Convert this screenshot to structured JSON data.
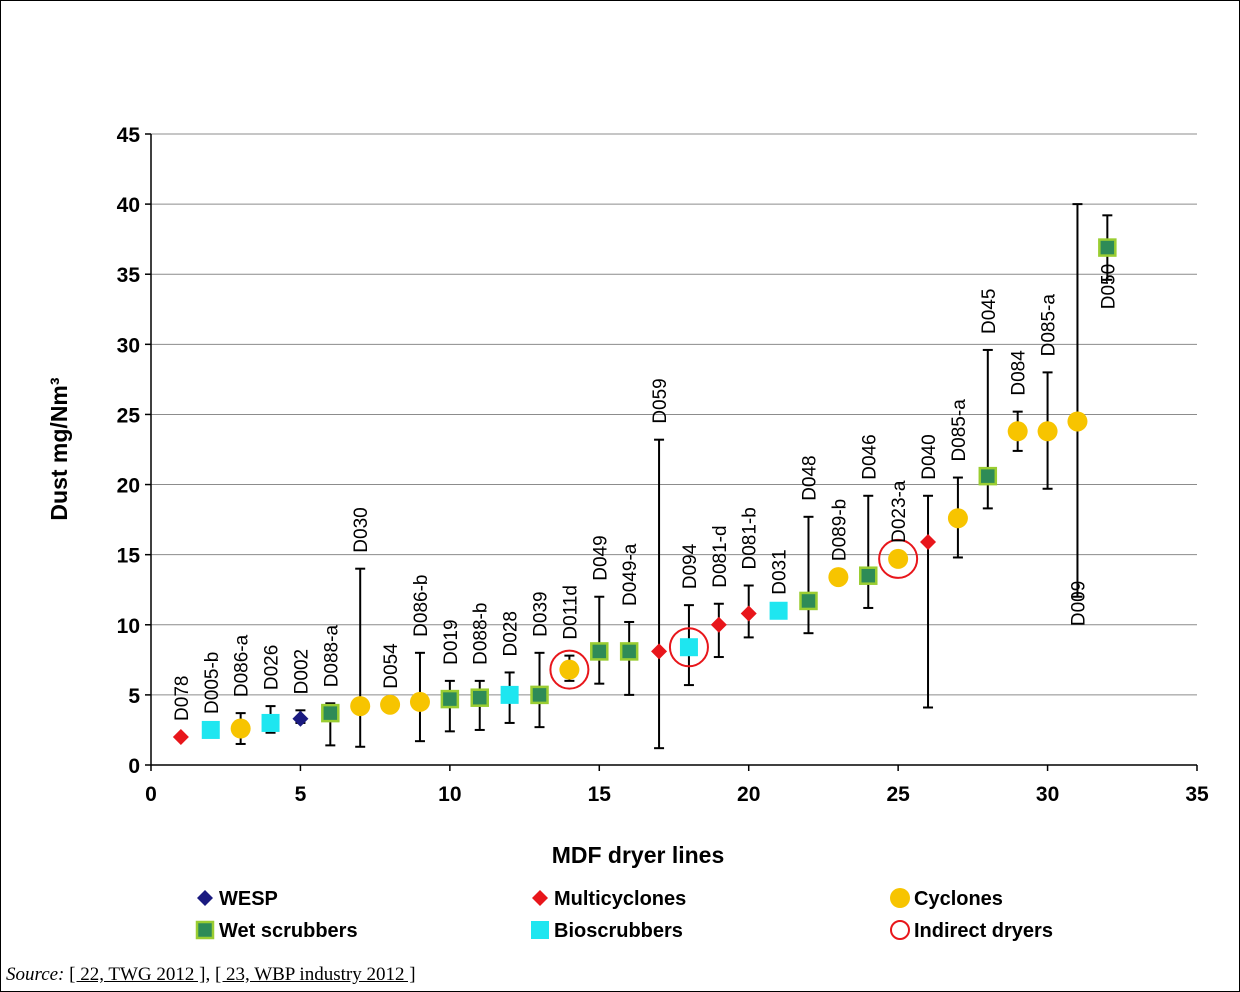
{
  "chart_data": {
    "type": "scatter",
    "xlabel": "MDF dryer lines",
    "ylabel": "Dust mg/Nm³",
    "xlim": [
      0,
      35
    ],
    "ylim": [
      0,
      45
    ],
    "xticks": [
      0,
      5,
      10,
      15,
      20,
      25,
      30,
      35
    ],
    "yticks": [
      0,
      5,
      10,
      15,
      20,
      25,
      30,
      35,
      40,
      45
    ],
    "grid": "horizontal",
    "legend_position": "bottom",
    "legend": [
      {
        "key": "wesp",
        "label": "WESP"
      },
      {
        "key": "multicyclones",
        "label": "Multicyclones"
      },
      {
        "key": "cyclones",
        "label": "Cyclones"
      },
      {
        "key": "wet_scrubbers",
        "label": "Wet scrubbers"
      },
      {
        "key": "bioscrubbers",
        "label": "Bioscrubbers"
      },
      {
        "key": "indirect_dryers",
        "label": "Indirect dryers"
      }
    ],
    "colors": {
      "wesp": "#1a1a80",
      "multicyclones": "#e8161b",
      "cyclones": "#f7c400",
      "wet_scrubbers_fill": "#2e8b57",
      "wet_scrubbers_edge": "#9acd32",
      "bioscrubbers": "#1ee6f0",
      "indirect_dryers": "#e8161b",
      "error_bars": "#000000",
      "grid": "#8c8c8c"
    },
    "points": [
      {
        "x": 1,
        "y": 2.0,
        "type": "multicyclones",
        "label": "D078"
      },
      {
        "x": 2,
        "y": 2.5,
        "type": "bioscrubbers",
        "label": "D005-b"
      },
      {
        "x": 3,
        "y": 2.6,
        "type": "cyclones",
        "label": "D086-a",
        "min": 1.5,
        "max": 3.7
      },
      {
        "x": 4,
        "y": 3.0,
        "type": "bioscrubbers",
        "label": "D026",
        "min": 2.3,
        "max": 4.2
      },
      {
        "x": 5,
        "y": 3.3,
        "type": "wesp",
        "label": "D002",
        "min": 3.0,
        "max": 3.9
      },
      {
        "x": 6,
        "y": 3.7,
        "type": "wet_scrubbers",
        "label": "D088-a",
        "min": 1.4,
        "max": 4.4
      },
      {
        "x": 7,
        "y": 4.2,
        "type": "cyclones",
        "label": "D030",
        "min": 1.3,
        "max": 14.0
      },
      {
        "x": 8,
        "y": 4.3,
        "type": "cyclones",
        "label": "D054"
      },
      {
        "x": 9,
        "y": 4.5,
        "type": "cyclones",
        "label": "D086-b",
        "min": 1.7,
        "max": 8.0
      },
      {
        "x": 10,
        "y": 4.7,
        "type": "wet_scrubbers",
        "label": "D019",
        "min": 2.4,
        "max": 6.0
      },
      {
        "x": 11,
        "y": 4.8,
        "type": "wet_scrubbers",
        "label": "D088-b",
        "min": 2.5,
        "max": 6.0
      },
      {
        "x": 12,
        "y": 5.0,
        "type": "bioscrubbers",
        "label": "D028",
        "min": 3.0,
        "max": 6.6
      },
      {
        "x": 13,
        "y": 5.0,
        "type": "wet_scrubbers",
        "label": "D039",
        "min": 2.7,
        "max": 8.0
      },
      {
        "x": 14,
        "y": 6.8,
        "type": "cyclones",
        "label": "D011d",
        "min": 6.0,
        "max": 7.8,
        "indirect": true
      },
      {
        "x": 15,
        "y": 8.1,
        "type": "wet_scrubbers",
        "label": "D049",
        "min": 5.8,
        "max": 12.0
      },
      {
        "x": 16,
        "y": 8.1,
        "type": "wet_scrubbers",
        "label": "D049-a",
        "min": 5.0,
        "max": 10.2
      },
      {
        "x": 17,
        "y": 8.1,
        "type": "multicyclones",
        "label": "D059",
        "min": 1.2,
        "max": 23.2
      },
      {
        "x": 18,
        "y": 8.4,
        "type": "bioscrubbers",
        "label": "D094",
        "min": 5.7,
        "max": 11.4,
        "indirect": true
      },
      {
        "x": 19,
        "y": 10.0,
        "type": "multicyclones",
        "label": "D081-d",
        "min": 7.7,
        "max": 11.5
      },
      {
        "x": 20,
        "y": 10.8,
        "type": "multicyclones",
        "label": "D081-b",
        "min": 9.1,
        "max": 12.8
      },
      {
        "x": 21,
        "y": 11.0,
        "type": "bioscrubbers",
        "label": "D031"
      },
      {
        "x": 22,
        "y": 11.7,
        "type": "wet_scrubbers",
        "label": "D048",
        "min": 9.4,
        "max": 17.7
      },
      {
        "x": 23,
        "y": 13.4,
        "type": "cyclones",
        "label": "D089-b"
      },
      {
        "x": 24,
        "y": 13.5,
        "type": "wet_scrubbers",
        "label": "D046",
        "min": 11.2,
        "max": 19.2
      },
      {
        "x": 25,
        "y": 14.7,
        "type": "cyclones",
        "label": "D023-a",
        "indirect": true
      },
      {
        "x": 26,
        "y": 15.9,
        "type": "multicyclones",
        "label": "D040",
        "min": 4.1,
        "max": 19.2
      },
      {
        "x": 27,
        "y": 17.6,
        "type": "cyclones",
        "label": "D085-a",
        "min": 14.8,
        "max": 20.5
      },
      {
        "x": 28,
        "y": 20.6,
        "type": "wet_scrubbers",
        "label": "D045",
        "min": 18.3,
        "max": 29.6
      },
      {
        "x": 29,
        "y": 23.8,
        "type": "cyclones",
        "label": "D084",
        "min": 22.4,
        "max": 25.2
      },
      {
        "x": 30,
        "y": 23.8,
        "type": "cyclones",
        "label": "D085-a",
        "min": 19.7,
        "max": 28.0
      },
      {
        "x": 31,
        "y": 24.5,
        "type": "cyclones",
        "label": "D009",
        "min": 12.0,
        "max": 40.0,
        "label_below": true
      },
      {
        "x": 32,
        "y": 36.9,
        "type": "wet_scrubbers",
        "label": "D050",
        "min": 34.6,
        "max": 39.2,
        "label_below": true
      }
    ]
  },
  "source": {
    "label": "Source:",
    "refs": [
      "[ 22, TWG 2012 ]",
      "[ 23, WBP industry 2012 ]"
    ],
    "separator": ", "
  }
}
